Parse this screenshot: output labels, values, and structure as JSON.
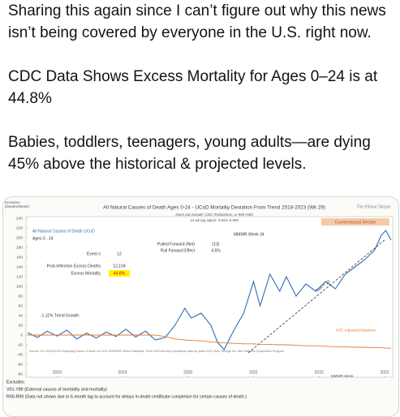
{
  "post": {
    "paragraphs": [
      "Sharing this again since I can’t figure out why this news isn’t being covered by everyone in the U.S. right now.",
      "CDC Data Shows Excess Mortality for Ages 0–24 is at 44.8%",
      "Babies, toddlers, teenagers, young adults—are dying 45% above the historical & projected levels."
    ]
  },
  "chart_data": {
    "type": "line",
    "title": "All Natural Causes of Death Ages 0-24 - UCoD Mortality Deviation From Trend 2018-2023 (Wk 29)",
    "subtitle": [
      "Does not include: CDC Redactions, or 999 Hold",
      "12 wk lag adjust: 0.654–0.999"
    ],
    "y_label": "Deviation (Deaths/Week)",
    "watermark": "The Ethical Skeptic",
    "panel": [
      "All Natural Causes of Death UCoD",
      "Ages 0 - 24"
    ],
    "stats": [
      [
        "Event o",
        "12"
      ],
      [
        "Post-Inflection Excess Deaths",
        "12,104"
      ],
      [
        "Excess Mortality",
        "44.8%"
      ]
    ],
    "pulled": [
      [
        "Pulled Forward (Net)",
        "(13)"
      ],
      [
        "Pull Forward Effect",
        "4.5%"
      ]
    ],
    "annotations": [
      "MMWR Week 34",
      "Counterfactual Decline",
      "Run = 13",
      "-1.11% Trend Growth",
      "PFE Adjusted Baseline",
      "MMWR Week"
    ],
    "source": "Source: US CDC/NCHS Underlying Cause of Death on CDC WONDER Online Database, 2018-2023 and from provisional data for years 2021-2022, through the Vital Statistics Cooperative Program.",
    "excludes": [
      "Excludes:",
      "V01-Y89 (External causes of morbidity and mortality)",
      "R00-R99 (Data not shown due to 6-month lag to account for delays in death certificate completion for certain causes of death.)"
    ],
    "x": [
      2018.05,
      2018.2,
      2018.35,
      2018.5,
      2018.65,
      2018.8,
      2018.95,
      2019.1,
      2019.25,
      2019.4,
      2019.55,
      2019.7,
      2019.85,
      2020.0,
      2020.15,
      2020.3,
      2020.45,
      2020.55,
      2020.7,
      2020.85,
      2020.95,
      2021.05,
      2021.2,
      2021.35,
      2021.5,
      2021.6,
      2021.75,
      2021.9,
      2022.0,
      2022.15,
      2022.3,
      2022.45,
      2022.6,
      2022.75,
      2022.9,
      2023.05,
      2023.2,
      2023.35,
      2023.45,
      2023.52,
      2023.6
    ],
    "series": [
      {
        "name": "Deviation",
        "color": "#2f6db5",
        "values": [
          5,
          -5,
          8,
          -2,
          10,
          -8,
          4,
          -6,
          6,
          -3,
          12,
          -4,
          8,
          -10,
          -5,
          20,
          55,
          35,
          45,
          20,
          -15,
          -30,
          10,
          45,
          110,
          60,
          125,
          90,
          120,
          80,
          105,
          90,
          110,
          95,
          125,
          140,
          155,
          175,
          205,
          215,
          195
        ]
      },
      {
        "name": "PFE Adjusted Baseline",
        "color": "#e07b39",
        "values": [
          0,
          0,
          0,
          0,
          0,
          0,
          0,
          0,
          0,
          0,
          0,
          0,
          0,
          0,
          -3,
          -8,
          -10,
          -11,
          -12,
          -14,
          -15,
          -16,
          -17,
          -18,
          -18,
          -19,
          -19,
          -20,
          -20,
          -21,
          -22,
          -22,
          -23,
          -24,
          -24,
          -25,
          -25,
          -26,
          -26,
          -27,
          -27
        ]
      }
    ],
    "xlim": [
      2018.05,
      2023.6
    ],
    "xticks": [
      {
        "value": 2018.5,
        "label": "2018"
      },
      {
        "value": 2019.5,
        "label": "2019"
      },
      {
        "value": 2020.5,
        "label": "2020"
      },
      {
        "value": 2021.5,
        "label": "2021"
      },
      {
        "value": 2022.5,
        "label": "2022"
      },
      {
        "value": 2023.5,
        "label": "2023"
      }
    ],
    "ylim": [
      -80,
      240
    ],
    "yticks": [
      -80,
      -60,
      -40,
      -20,
      0,
      20,
      40,
      60,
      80,
      100,
      120,
      140,
      160,
      180,
      200,
      220,
      240
    ]
  }
}
